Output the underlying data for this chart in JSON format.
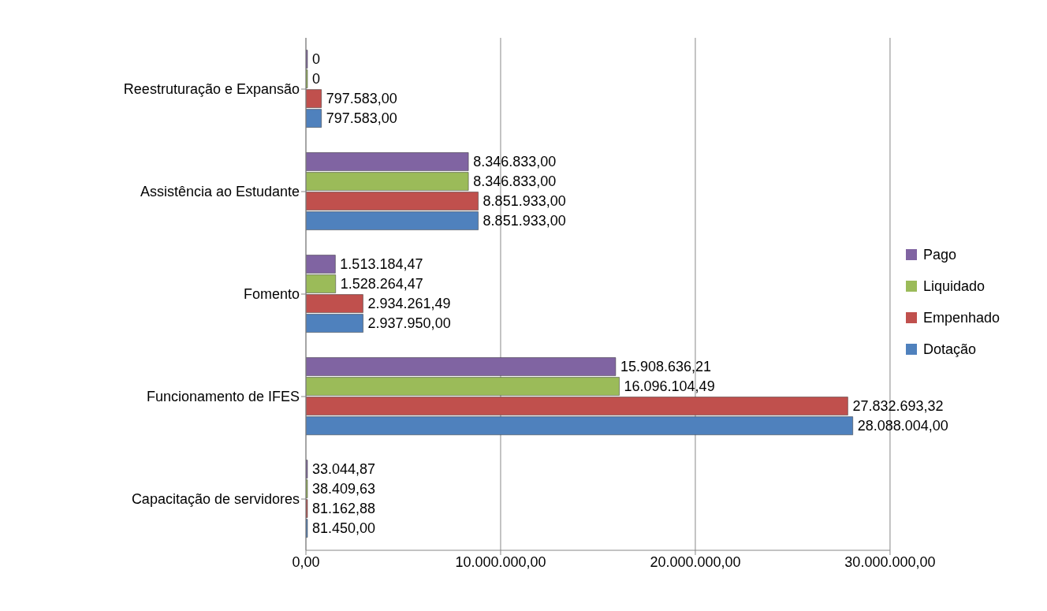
{
  "chart_data": {
    "type": "bar",
    "orientation": "horizontal",
    "categories": [
      "Reestruturação e Expansão",
      "Assistência ao Estudante",
      "Fomento",
      "Funcionamento de IFES",
      "Capacitação de servidores"
    ],
    "series": [
      {
        "name": "Pago",
        "color": "#8064a2",
        "values": [
          0,
          8346833.0,
          1513184.47,
          15908636.21,
          33044.87
        ],
        "value_labels": [
          "0",
          "8.346.833,00",
          "1.513.184,47",
          "15.908.636,21",
          "33.044,87"
        ]
      },
      {
        "name": "Liquidado",
        "color": "#9bbb59",
        "values": [
          0,
          8346833.0,
          1528264.47,
          16096104.49,
          38409.63
        ],
        "value_labels": [
          "0",
          "8.346.833,00",
          "1.528.264,47",
          "16.096.104,49",
          "38.409,63"
        ]
      },
      {
        "name": "Empenhado",
        "color": "#c0504d",
        "values": [
          797583.0,
          8851933.0,
          2934261.49,
          27832693.32,
          81162.88
        ],
        "value_labels": [
          "797.583,00",
          "8.851.933,00",
          "2.934.261,49",
          "27.832.693,32",
          "81.162,88"
        ]
      },
      {
        "name": "Dotação",
        "color": "#4f81bd",
        "values": [
          797583.0,
          8851933.0,
          2937950.0,
          28088004.0,
          81450.0
        ],
        "value_labels": [
          "797.583,00",
          "8.851.933,00",
          "2.937.950,00",
          "28.088.004,00",
          "81.450,00"
        ]
      }
    ],
    "xlim": [
      0,
      30000000
    ],
    "xticks": [
      {
        "value": 0,
        "label": "0,00"
      },
      {
        "value": 10000000,
        "label": "10.000.000,00"
      },
      {
        "value": 20000000,
        "label": "20.000.000,00"
      },
      {
        "value": 30000000,
        "label": "30.000.000,00"
      }
    ],
    "grid": "x",
    "legend": "right"
  }
}
